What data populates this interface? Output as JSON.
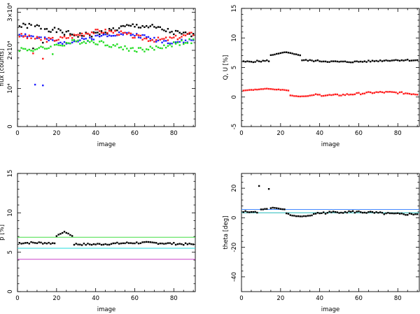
{
  "chart_data": [
    {
      "type": "scatter",
      "id": "flux",
      "xlabel": "image",
      "ylabel": "flux [counts]",
      "xlim": [
        0,
        91
      ],
      "ylim": [
        0,
        31000
      ],
      "xticks": [
        0,
        20,
        40,
        60,
        80
      ],
      "xtick_labels": [
        "0",
        "20",
        "40",
        "60",
        "80"
      ],
      "yticks": [
        0,
        10000,
        20000,
        30000
      ],
      "ytick_labels": [
        "0",
        "10⁴",
        "2×10⁴",
        "3×10⁴"
      ],
      "series": [
        {
          "name": "black",
          "color": "#000000",
          "gen": {
            "n": 90,
            "base": 25200,
            "amp": 1200,
            "noise": 700,
            "seed": 1
          },
          "outliers": [
            [
              8,
              20500
            ],
            [
              13,
              22000
            ]
          ]
        },
        {
          "name": "blue",
          "color": "#1a1aff",
          "gen": {
            "n": 90,
            "base": 23300,
            "amp": 1100,
            "noise": 550,
            "seed": 2
          },
          "outliers": [
            [
              9,
              11000
            ],
            [
              13,
              10800
            ]
          ]
        },
        {
          "name": "red",
          "color": "#ff1a1a",
          "gen": {
            "n": 90,
            "base": 23900,
            "amp": 1100,
            "noise": 600,
            "seed": 3
          },
          "outliers": [
            [
              8,
              19200
            ],
            [
              13,
              17800
            ]
          ]
        },
        {
          "name": "green",
          "color": "#22dd22",
          "gen": {
            "n": 90,
            "base": 21300,
            "amp": 1100,
            "noise": 650,
            "seed": 4
          },
          "outliers": [
            [
              18,
              19000
            ]
          ]
        }
      ],
      "hlines": []
    },
    {
      "type": "scatter",
      "id": "qu",
      "xlabel": "image",
      "ylabel": "Q, U [%]",
      "xlim": [
        0,
        91
      ],
      "ylim": [
        -5,
        15
      ],
      "xticks": [
        0,
        20,
        40,
        60,
        80
      ],
      "xtick_labels": [
        "0",
        "20",
        "40",
        "60",
        "80"
      ],
      "yticks": [
        -5,
        0,
        5,
        10,
        15
      ],
      "ytick_labels": [
        "-5",
        "0",
        "5",
        "10",
        "15"
      ],
      "series": [
        {
          "name": "Q",
          "color": "#000000",
          "gen": {
            "n": 90,
            "base": 6.1,
            "amp": 0.15,
            "noise": 0.12,
            "seed": 5,
            "bump": [
              [
                15,
                30,
                7.6
              ]
            ]
          },
          "outliers": []
        },
        {
          "name": "U",
          "color": "#ff1a1a",
          "gen": {
            "n": 90,
            "base": 0.55,
            "amp": 0.25,
            "noise": 0.15,
            "seed": 6,
            "bump": [
              [
                1,
                25,
                1.4
              ],
              [
                25,
                36,
                0.1
              ]
            ]
          },
          "outliers": []
        }
      ],
      "hlines": []
    },
    {
      "type": "scatter",
      "id": "p",
      "xlabel": "image",
      "ylabel": "p [%]",
      "xlim": [
        0,
        91
      ],
      "ylim": [
        0,
        15
      ],
      "xticks": [
        0,
        20,
        40,
        60,
        80
      ],
      "xtick_labels": [
        "0",
        "20",
        "40",
        "60",
        "80"
      ],
      "yticks": [
        0,
        5,
        10,
        15
      ],
      "ytick_labels": [
        "0",
        "5",
        "10",
        "15"
      ],
      "series": [
        {
          "name": "p",
          "color": "#000000",
          "gen": {
            "n": 90,
            "base": 6.1,
            "amp": 0.1,
            "noise": 0.12,
            "seed": 7,
            "bump": [
              [
                20,
                28,
                7.6
              ]
            ]
          },
          "outliers": []
        }
      ],
      "hlines": [
        {
          "y": 6.9,
          "color": "#44dd44"
        },
        {
          "y": 5.5,
          "color": "#22dddd"
        },
        {
          "y": 4.1,
          "color": "#cc44cc"
        }
      ]
    },
    {
      "type": "scatter",
      "id": "theta",
      "xlabel": "image",
      "ylabel": "theta [deg]",
      "xlim": [
        0,
        91
      ],
      "ylim": [
        -50,
        30
      ],
      "xticks": [
        0,
        20,
        40,
        60,
        80
      ],
      "xtick_labels": [
        "0",
        "20",
        "40",
        "60",
        "80"
      ],
      "yticks": [
        -40,
        -20,
        0,
        20
      ],
      "ytick_labels": [
        "-40",
        "-20",
        "0",
        "20"
      ],
      "series": [
        {
          "name": "theta",
          "color": "#000000",
          "gen": {
            "n": 90,
            "base": 3.2,
            "amp": 0.8,
            "noise": 0.7,
            "seed": 8,
            "bump": [
              [
                10,
                22,
                6.8
              ],
              [
                25,
                36,
                0.8
              ]
            ]
          },
          "outliers": [
            [
              9,
              21.5
            ],
            [
              14,
              19.5
            ]
          ]
        }
      ],
      "hlines": [
        {
          "y": 5.6,
          "color": "#4488ff"
        },
        {
          "y": 3.4,
          "color": "#22bbbb"
        }
      ]
    }
  ]
}
